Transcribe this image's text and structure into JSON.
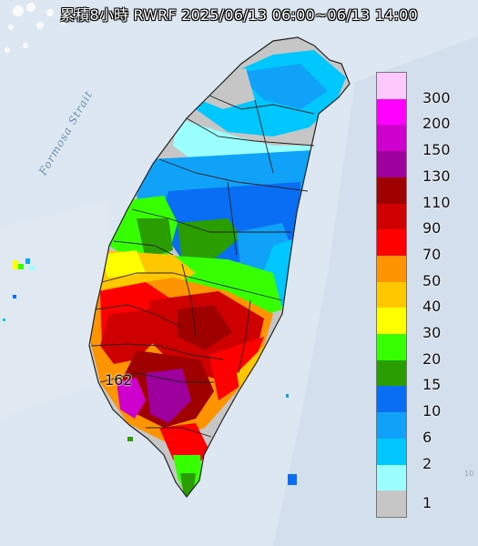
{
  "header": {
    "title": "累積8小時 RWRF 2025/06/13 06:00~06/13 14:00"
  },
  "map": {
    "water_label": "Formosa Strait",
    "max_value_label": "162",
    "edge_text": "10",
    "colors": {
      "sea": "#dce7f1",
      "land_no_rain": "#c6c6c6",
      "county_border": "#222222"
    }
  },
  "legend": {
    "labels": [
      "300",
      "200",
      "150",
      "130",
      "110",
      "90",
      "70",
      "50",
      "40",
      "30",
      "20",
      "15",
      "10",
      "6",
      "2",
      "1"
    ],
    "colors": [
      "#fdc9fd",
      "#fe00fe",
      "#ce00ce",
      "#9e009e",
      "#9f0000",
      "#cf0000",
      "#fe0000",
      "#fe9400",
      "#ffc700",
      "#ffff00",
      "#35ff00",
      "#2a9d00",
      "#0a6ef5",
      "#0fa2f8",
      "#00c8fe",
      "#9bffff",
      "#c6c6c6"
    ],
    "unit_order": "descending"
  }
}
